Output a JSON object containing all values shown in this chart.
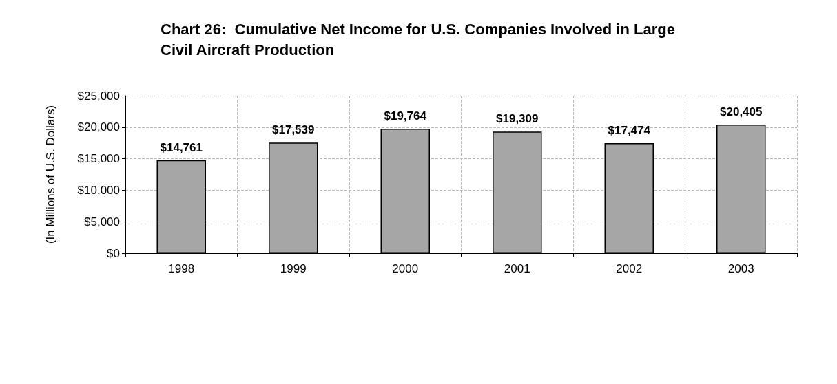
{
  "chart_data": {
    "type": "bar",
    "title": "Chart 26:  Cumulative Net Income for U.S. Companies Involved in Large Civil Aircraft Production",
    "ylabel": "(In Millions of U.S. Dollars)",
    "categories": [
      "1998",
      "1999",
      "2000",
      "2001",
      "2002",
      "2003"
    ],
    "values": [
      14761,
      17539,
      19764,
      19309,
      17474,
      20405
    ],
    "value_labels": [
      "$14,761",
      "$17,539",
      "$19,764",
      "$19,309",
      "$17,474",
      "$20,405"
    ],
    "color": "#a6a6a6",
    "ylim": [
      0,
      25000
    ],
    "yticks": [
      {
        "value": 0,
        "label": "$0"
      },
      {
        "value": 5000,
        "label": "$5,000"
      },
      {
        "value": 10000,
        "label": "$10,000"
      },
      {
        "value": 15000,
        "label": "$15,000"
      },
      {
        "value": 20000,
        "label": "$20,000"
      },
      {
        "value": 25000,
        "label": "$25,000"
      }
    ],
    "grid": true
  }
}
